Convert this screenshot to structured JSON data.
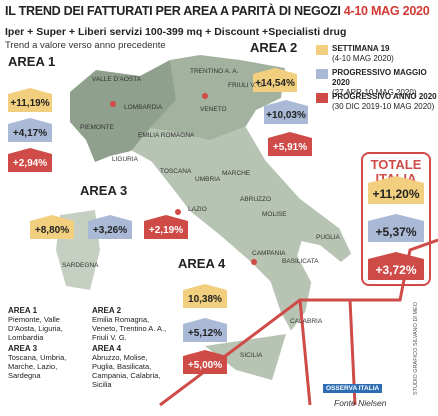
{
  "header": {
    "title": "IL TREND DEI FATTURATI PER AREA A PARITÀ DI NEGOZI",
    "date": "4-10 MAG 2020",
    "subtitle": "Iper + Super + Liberi servizi 100-399 mq + Discount +Specialisti drug",
    "note": "Trend a valore verso anno precedente"
  },
  "legend": [
    {
      "label": "SETTIMANA 19",
      "period": "(4-10 MAG 2020)"
    },
    {
      "label": "PROGRESSIVO MAGGIO 2020",
      "period": "(27 APR-10 MAG 2020)"
    },
    {
      "label": "PROGRESSIVO ANNO 2020",
      "period": "(30 DIC 2019-10 MAG 2020)"
    }
  ],
  "areas": [
    {
      "name": "AREA 1",
      "values": [
        "+11,19%",
        "+4,17%",
        "+2,94%"
      ]
    },
    {
      "name": "AREA 2",
      "values": [
        "+14,54%",
        "+10,03%",
        "+5,91%"
      ]
    },
    {
      "name": "AREA 3",
      "values": [
        "+8,80%",
        "+3,26%",
        "+2,19%"
      ]
    },
    {
      "name": "AREA 4",
      "values": [
        "10,38%",
        "+5,12%",
        "+5,00%"
      ]
    }
  ],
  "total": {
    "title": "TOTALE ITALIA",
    "values": [
      "+11,20%",
      "+5,37%",
      "+3,72%"
    ]
  },
  "regions": [
    "VALLE D'AOSTA",
    "PIEMONTE",
    "LOMBARDIA",
    "TRENTINO A. A.",
    "FRIULI V. G.",
    "VENETO",
    "EMILIA ROMAGNA",
    "LIGURIA",
    "TOSCANA",
    "UMBRIA",
    "MARCHE",
    "LAZIO",
    "ABRUZZO",
    "MOLISE",
    "SARDEGNA",
    "CAMPANIA",
    "PUGLIA",
    "BASILICATA",
    "CALABRIA",
    "SICILIA"
  ],
  "area_key": [
    {
      "name": "AREA 1",
      "regions": "Piemonte, Valle D'Aosta, Liguria, Lombardia"
    },
    {
      "name": "AREA 2",
      "regions": "Emilia Romagna, Veneto, Trentino A. A., Friuli V. G."
    },
    {
      "name": "AREA 3",
      "regions": "Toscana, Umbria, Marche, Lazio, Sardegna"
    },
    {
      "name": "AREA 4",
      "regions": "Abruzzo, Molise, Puglia, Basilicata, Campania, Calabria, Sicilia"
    }
  ],
  "source": "Fonte Nielsen",
  "credit": "STUDIO GRAFICO SILVANO DI MEO",
  "logo": "OSSERVA ITALIA"
}
